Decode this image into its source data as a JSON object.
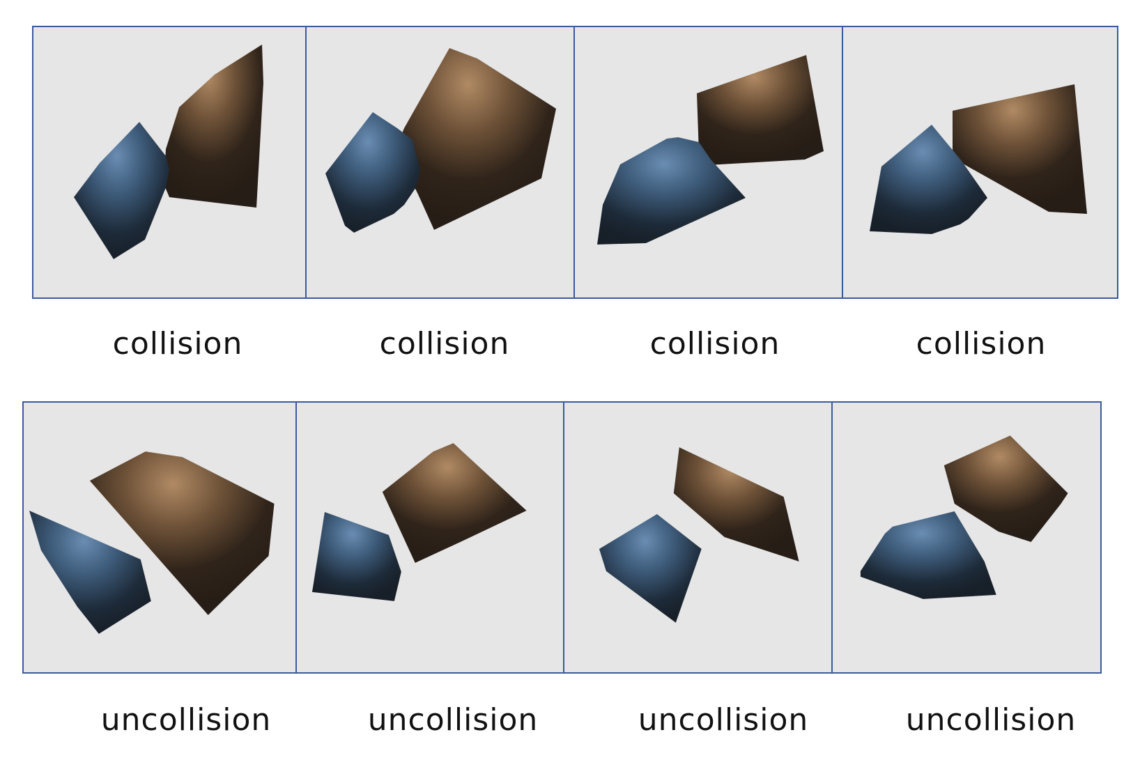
{
  "colors": {
    "frame": "#3a5a9c",
    "background": "#e6e6e6",
    "blue_object": "#4a6a8a",
    "brown_object": "#8a6a4a"
  },
  "top_row": {
    "labels": [
      "collision",
      "collision",
      "collision",
      "collision"
    ]
  },
  "bottom_row": {
    "labels": [
      "uncollision",
      "uncollision",
      "uncollision",
      "uncollision"
    ]
  }
}
